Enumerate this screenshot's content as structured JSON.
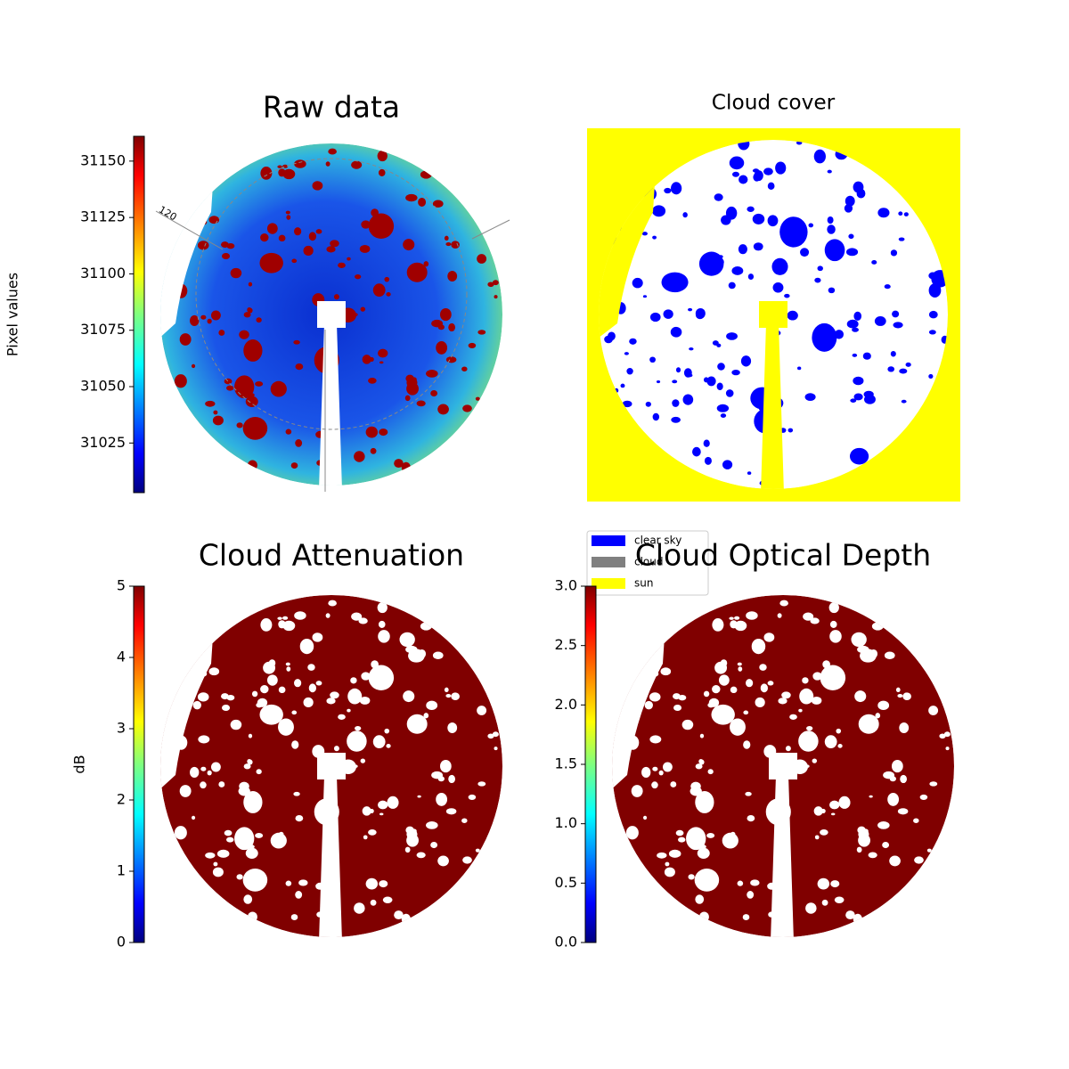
{
  "chart_data": [
    {
      "type": "image",
      "title": "Raw data",
      "colorbar_label": "Pixel values",
      "ylim": [
        31003,
        31161
      ],
      "yticks": [
        31025,
        31050,
        31075,
        31100,
        31125,
        31150
      ],
      "annotations": [
        "120"
      ]
    },
    {
      "type": "image",
      "title": "Cloud cover",
      "legend": [
        {
          "name": "clear sky",
          "color": "#0000ff"
        },
        {
          "name": "cloud",
          "color": "#808080"
        },
        {
          "name": "sun",
          "color": "#ffff00"
        }
      ]
    },
    {
      "type": "image",
      "title": "Cloud Attenuation",
      "colorbar_label": "dB",
      "ylim": [
        0,
        5
      ],
      "yticks": [
        0,
        1,
        2,
        3,
        4,
        5
      ]
    },
    {
      "type": "image",
      "title": "Cloud Optical Depth",
      "ylim": [
        0,
        3
      ],
      "yticks": [
        {
          "value": 0,
          "label": "0.0"
        },
        0.5,
        {
          "value": 1,
          "label": "1.0"
        },
        1.5,
        {
          "value": 2,
          "label": "2.0"
        },
        2.5,
        {
          "value": 3,
          "label": "3.0"
        }
      ]
    }
  ]
}
